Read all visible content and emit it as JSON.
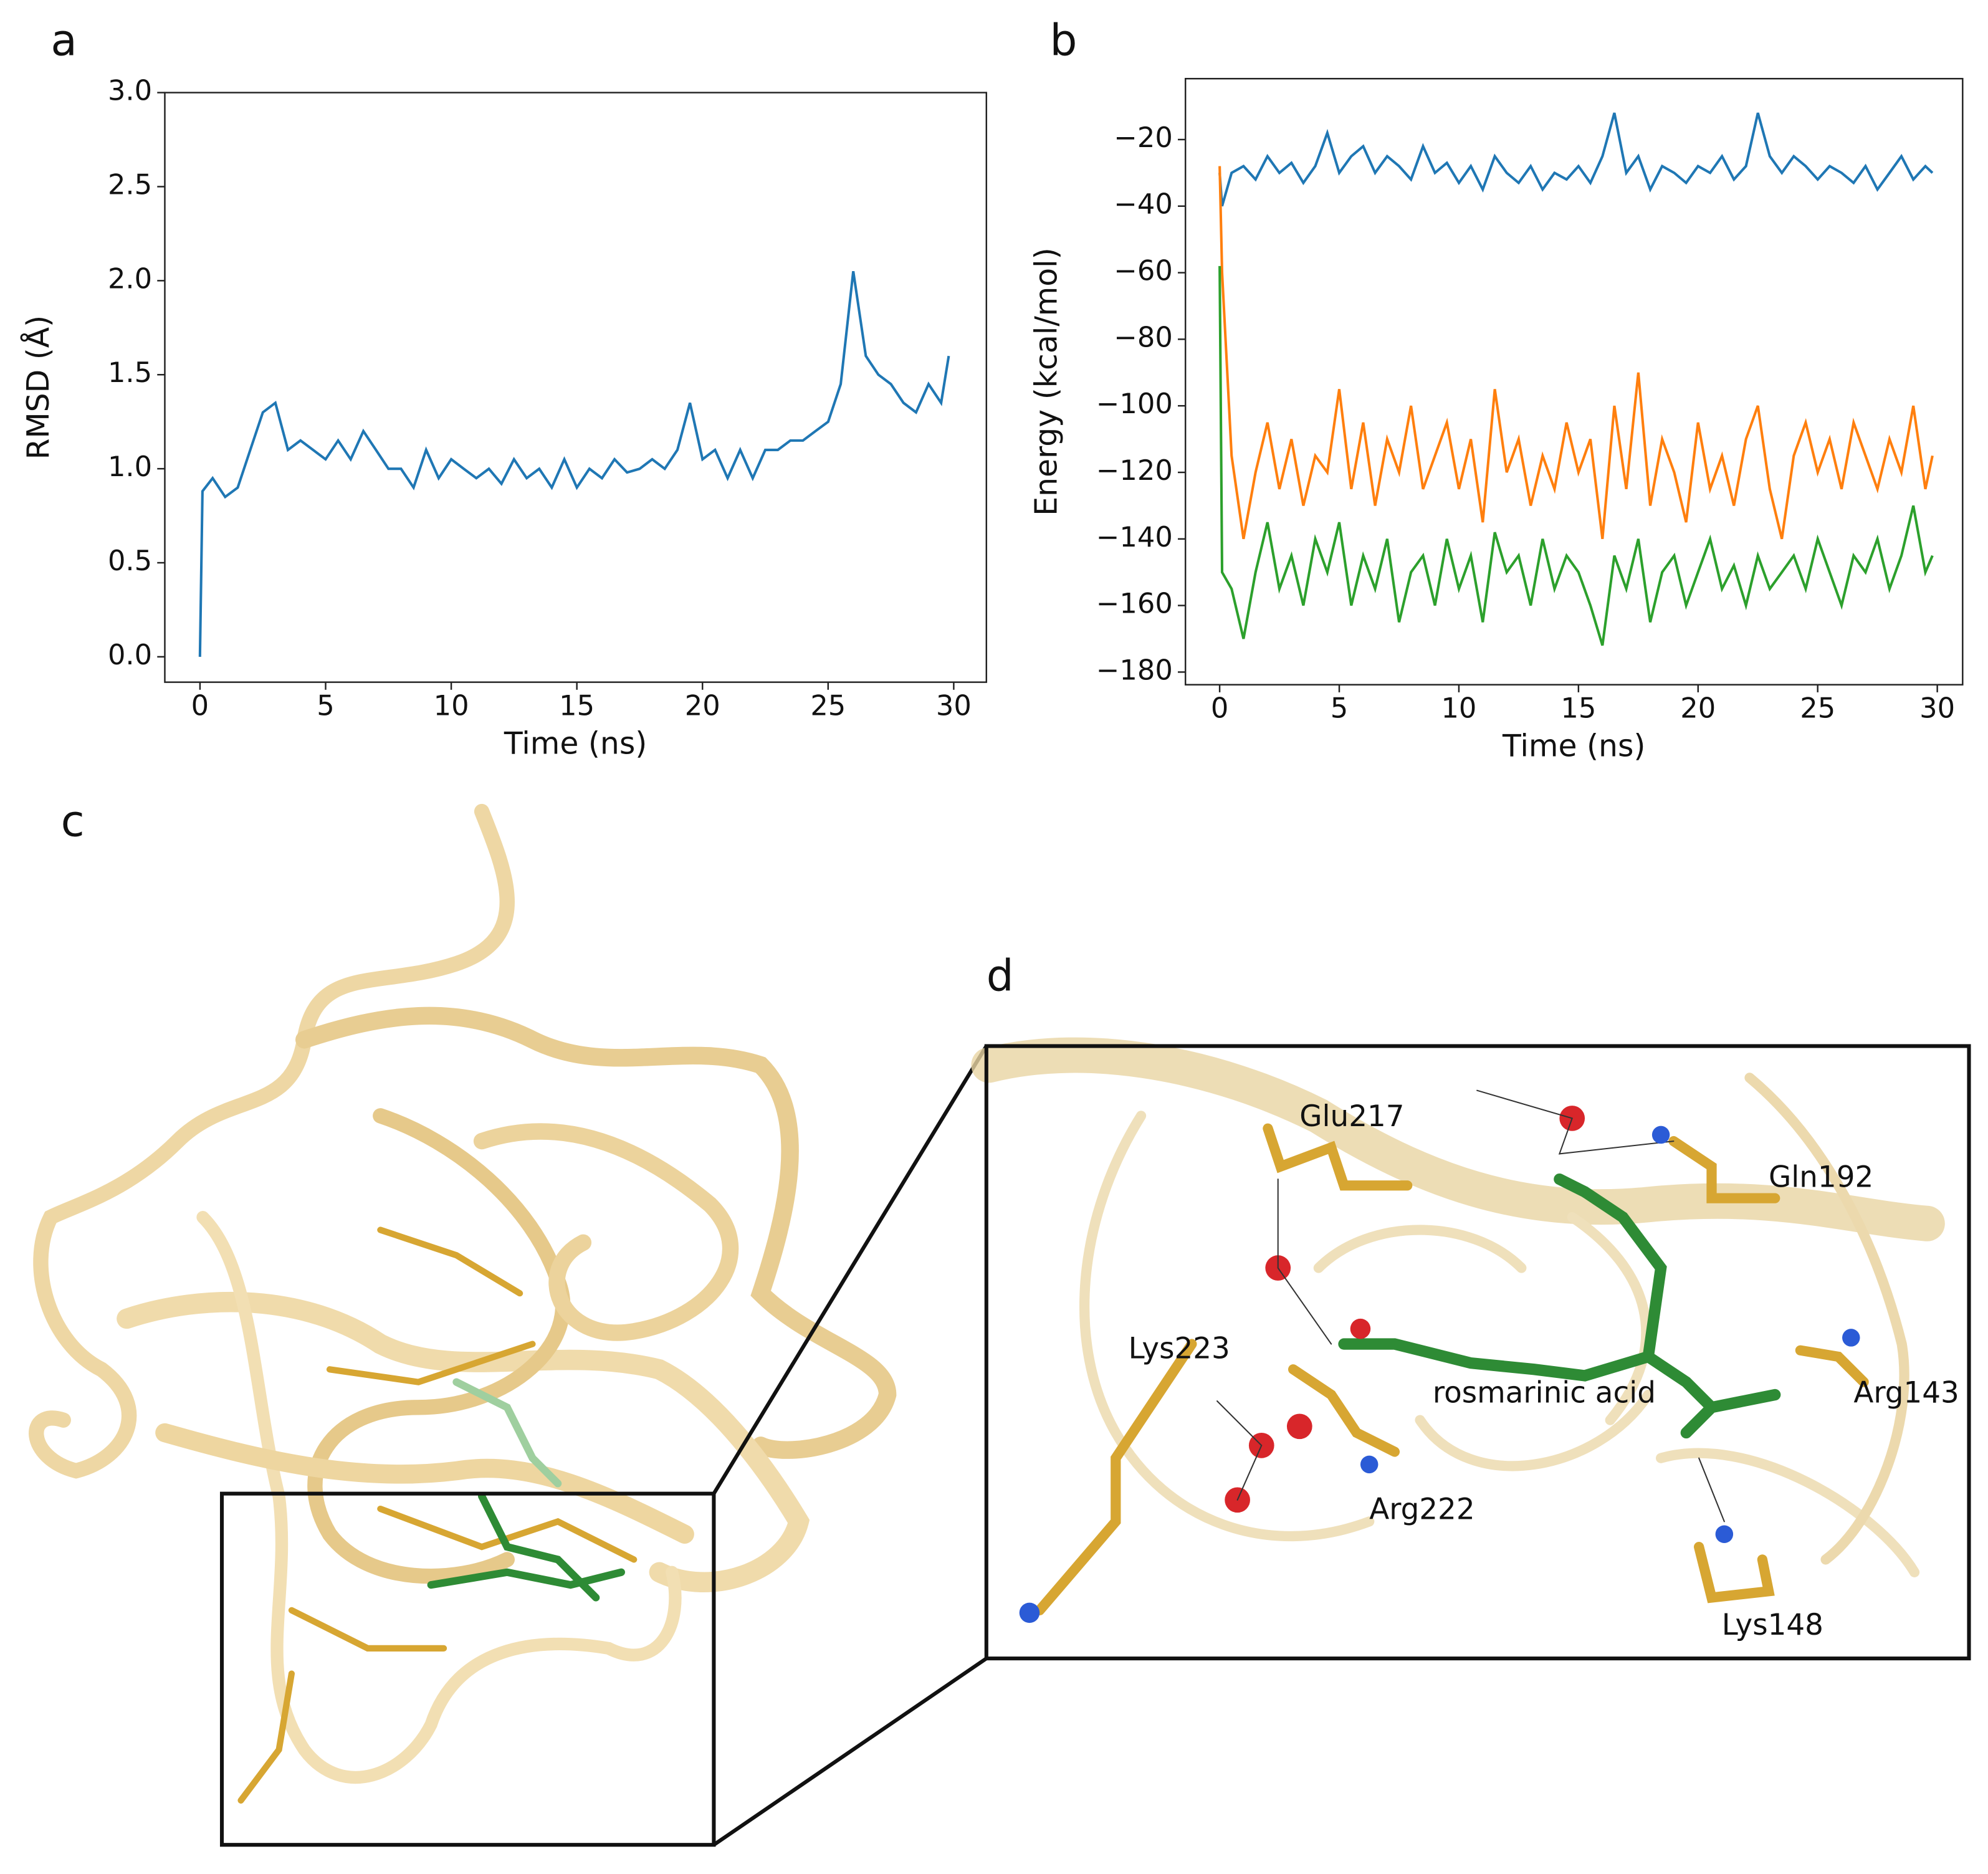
{
  "chart_data": [
    {
      "type": "line",
      "xlabel": "Time (ns)",
      "ylabel": "RMSD (Å)",
      "color": "#1f77b4",
      "x": [
        0,
        0.1,
        0.5,
        1,
        1.5,
        2,
        2.5,
        3,
        3.5,
        4,
        4.5,
        5,
        5.5,
        6,
        6.5,
        7,
        7.5,
        8,
        8.5,
        9,
        9.5,
        10,
        10.5,
        11,
        11.5,
        12,
        12.5,
        13,
        13.5,
        14,
        14.5,
        15,
        15.5,
        16,
        16.5,
        17,
        17.5,
        18,
        18.5,
        19,
        19.5,
        20,
        20.5,
        21,
        21.5,
        22,
        22.5,
        23,
        23.5,
        24,
        24.5,
        25,
        25.5,
        26,
        26.5,
        27,
        27.5,
        28,
        28.5,
        29,
        29.5,
        29.8
      ],
      "values": [
        0.0,
        0.88,
        0.95,
        0.85,
        0.9,
        1.1,
        1.3,
        1.35,
        1.1,
        1.15,
        1.1,
        1.05,
        1.15,
        1.05,
        1.2,
        1.1,
        1.0,
        1.0,
        0.9,
        1.1,
        0.95,
        1.05,
        1.0,
        0.95,
        1.0,
        0.92,
        1.05,
        0.95,
        1.0,
        0.9,
        1.05,
        0.9,
        1.0,
        0.95,
        1.05,
        0.98,
        1.0,
        1.05,
        1.0,
        1.1,
        1.35,
        1.05,
        1.1,
        0.95,
        1.1,
        0.95,
        1.1,
        1.1,
        1.15,
        1.15,
        1.2,
        1.25,
        1.45,
        2.05,
        1.6,
        1.5,
        1.45,
        1.35,
        1.3,
        1.45,
        1.35,
        1.6
      ],
      "xlim": [
        -1.4,
        31.3
      ],
      "xticks": [
        0,
        5,
        10,
        15,
        20,
        25,
        30
      ],
      "ylim": [
        -0.135,
        3.0
      ],
      "yticks": [
        {
          "value": 0,
          "label": "0.0"
        },
        {
          "value": 0.5,
          "label": "0.5"
        },
        {
          "value": 1,
          "label": "1.0"
        },
        {
          "value": 1.5,
          "label": "1.5"
        },
        {
          "value": 2,
          "label": "2.0"
        },
        {
          "value": 2.5,
          "label": "2.5"
        },
        {
          "value": 3,
          "label": "3.0"
        }
      ]
    },
    {
      "type": "line",
      "xlabel": "Time (ns)",
      "ylabel": "Energy (kcal/mol)",
      "x": [
        0,
        0.1,
        0.5,
        1,
        1.5,
        2,
        2.5,
        3,
        3.5,
        4,
        4.5,
        5,
        5.5,
        6,
        6.5,
        7,
        7.5,
        8,
        8.5,
        9,
        9.5,
        10,
        10.5,
        11,
        11.5,
        12,
        12.5,
        13,
        13.5,
        14,
        14.5,
        15,
        15.5,
        16,
        16.5,
        17,
        17.5,
        18,
        18.5,
        19,
        19.5,
        20,
        20.5,
        21,
        21.5,
        22,
        22.5,
        23,
        23.5,
        24,
        24.5,
        25,
        25.5,
        26,
        26.5,
        27,
        27.5,
        28,
        28.5,
        29,
        29.5,
        29.8
      ],
      "series": [
        {
          "color": "#1f77b4",
          "values": [
            -30,
            -40,
            -30,
            -28,
            -32,
            -25,
            -30,
            -27,
            -33,
            -28,
            -18,
            -30,
            -25,
            -22,
            -30,
            -25,
            -28,
            -32,
            -22,
            -30,
            -27,
            -33,
            -28,
            -35,
            -25,
            -30,
            -33,
            -28,
            -35,
            -30,
            -32,
            -28,
            -33,
            -25,
            -12,
            -30,
            -25,
            -35,
            -28,
            -30,
            -33,
            -28,
            -30,
            -25,
            -32,
            -28,
            -12,
            -25,
            -30,
            -25,
            -28,
            -32,
            -28,
            -30,
            -33,
            -28,
            -35,
            -30,
            -25,
            -32,
            -28,
            -30
          ]
        },
        {
          "color": "#ff7f0e",
          "values": [
            -28,
            -60,
            -115,
            -140,
            -120,
            -105,
            -125,
            -110,
            -130,
            -115,
            -120,
            -95,
            -125,
            -105,
            -130,
            -110,
            -120,
            -100,
            -125,
            -115,
            -105,
            -125,
            -110,
            -135,
            -95,
            -120,
            -110,
            -130,
            -115,
            -125,
            -105,
            -120,
            -110,
            -140,
            -100,
            -125,
            -90,
            -130,
            -110,
            -120,
            -135,
            -105,
            -125,
            -115,
            -130,
            -110,
            -100,
            -125,
            -140,
            -115,
            -105,
            -120,
            -110,
            -125,
            -105,
            -115,
            -125,
            -110,
            -120,
            -100,
            -125,
            -115
          ]
        },
        {
          "color": "#2ca02c",
          "values": [
            -58,
            -150,
            -155,
            -170,
            -150,
            -135,
            -155,
            -145,
            -160,
            -140,
            -150,
            -135,
            -160,
            -145,
            -155,
            -140,
            -165,
            -150,
            -145,
            -160,
            -140,
            -155,
            -145,
            -165,
            -138,
            -150,
            -145,
            -160,
            -140,
            -155,
            -145,
            -150,
            -160,
            -172,
            -145,
            -155,
            -140,
            -165,
            -150,
            -145,
            -160,
            -150,
            -140,
            -155,
            -148,
            -160,
            -145,
            -155,
            -150,
            -145,
            -155,
            -140,
            -150,
            -160,
            -145,
            -150,
            -140,
            -155,
            -145,
            -130,
            -150,
            -145
          ]
        }
      ],
      "xlim": [
        -1.43,
        31.06
      ],
      "xticks": [
        0,
        5,
        10,
        15,
        20,
        25,
        30
      ],
      "ylim": [
        -183.8,
        -1.7
      ],
      "yticks": [
        {
          "value": -20,
          "label": "−20"
        },
        {
          "value": -40,
          "label": "−40"
        },
        {
          "value": -60,
          "label": "−60"
        },
        {
          "value": -80,
          "label": "−80"
        },
        {
          "value": -100,
          "label": "−100"
        },
        {
          "value": -120,
          "label": "−120"
        },
        {
          "value": -140,
          "label": "−140"
        },
        {
          "value": -160,
          "label": "−160"
        },
        {
          "value": -180,
          "label": "−180"
        }
      ]
    }
  ],
  "panel_labels": [
    "a",
    "b",
    "c",
    "d"
  ],
  "residue_labels": [
    "Glu217",
    "Gln192",
    "Lys223",
    "rosmarinic acid",
    "Arg143",
    "Arg222",
    "Lys148"
  ]
}
